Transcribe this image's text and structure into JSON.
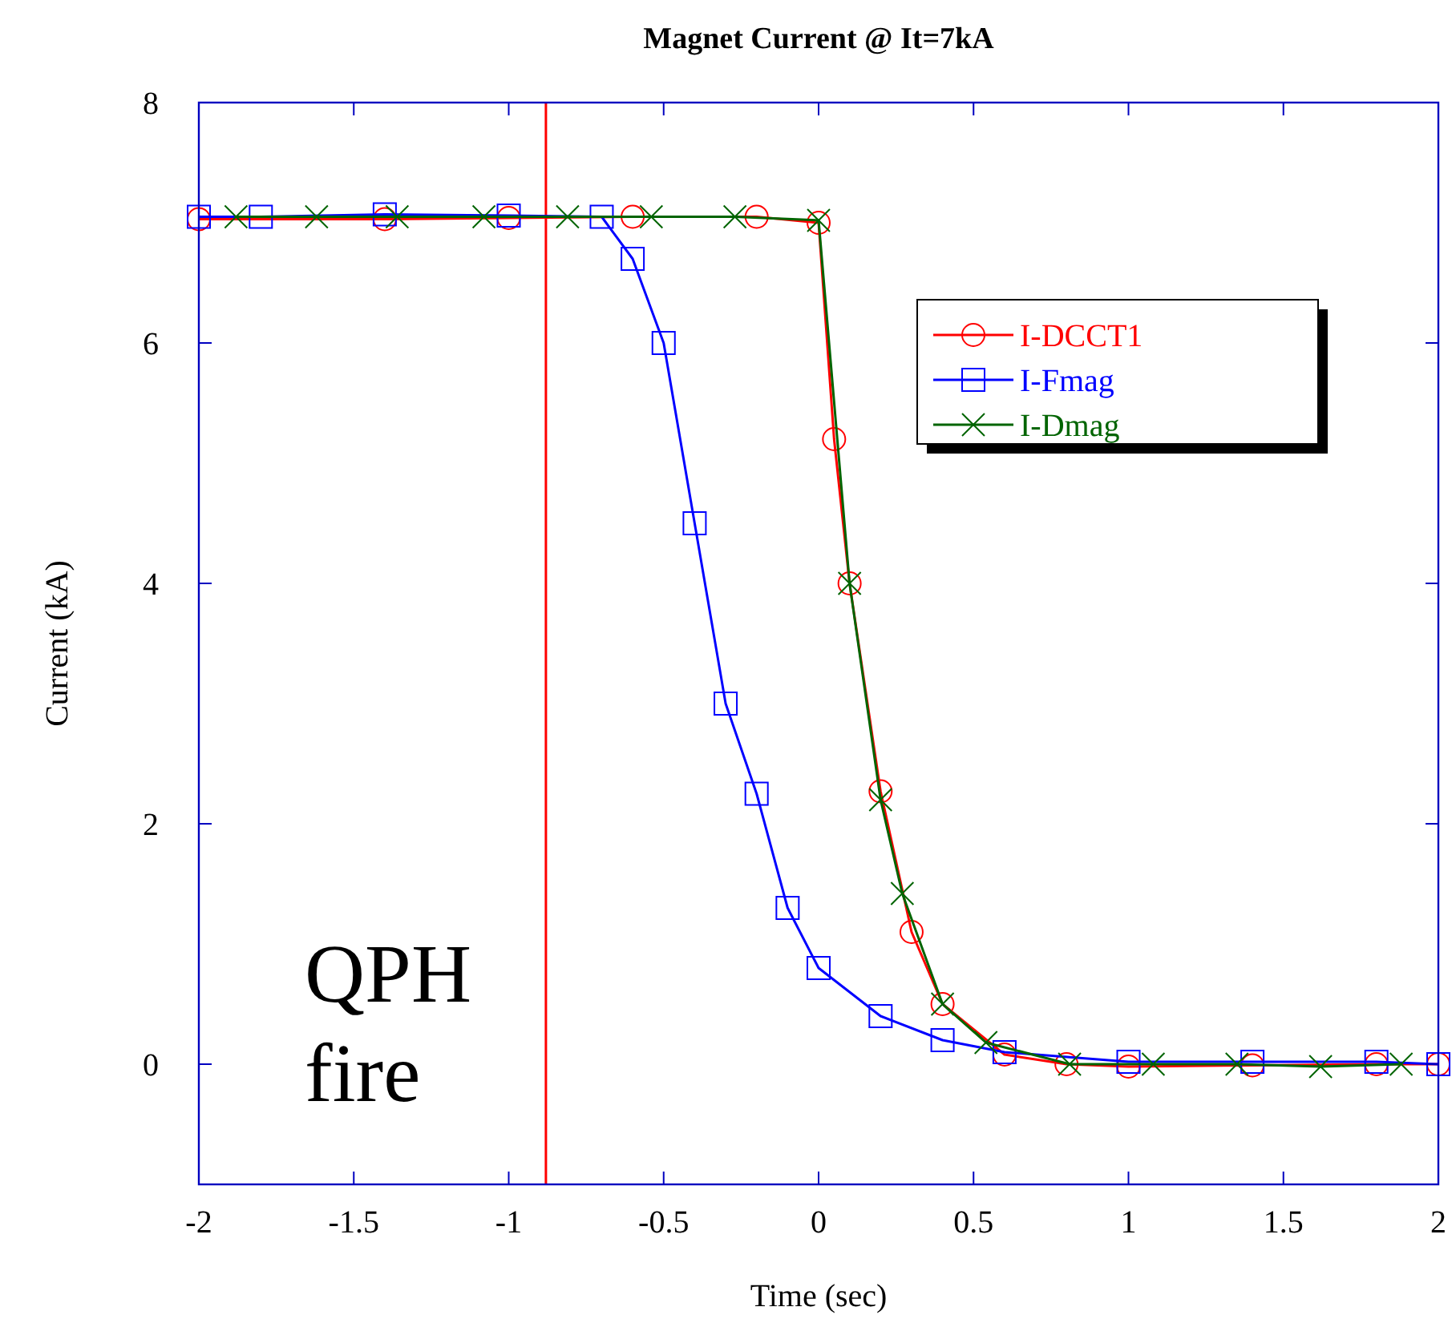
{
  "chart_data": {
    "type": "line",
    "title": "Magnet Current @ It=7kA",
    "xlabel": "Time (sec)",
    "ylabel": "Current (kA)",
    "xlim": [
      -2,
      2
    ],
    "ylim": [
      -1,
      8
    ],
    "xticks": [
      -2,
      -1.5,
      -1,
      -0.5,
      0,
      0.5,
      1,
      1.5,
      2
    ],
    "yticks": [
      0,
      2,
      4,
      6,
      8
    ],
    "grid": false,
    "legend": "top right",
    "line_style": "solid",
    "series": [
      {
        "name": "I-DCCT1",
        "color": "#ff0000",
        "marker": "circle",
        "x": [
          -2,
          -1.4,
          -1.0,
          -0.6,
          -0.2,
          0,
          0.05,
          0.1,
          0.2,
          0.3,
          0.4,
          0.6,
          0.8,
          1.0,
          1.4,
          1.8,
          2
        ],
        "values": [
          7.03,
          7.03,
          7.04,
          7.05,
          7.05,
          7.0,
          5.2,
          4.0,
          2.27,
          1.1,
          0.5,
          0.08,
          0.0,
          -0.02,
          -0.01,
          0.0,
          0.0
        ]
      },
      {
        "name": "I-Fmag",
        "color": "#0000ff",
        "marker": "square",
        "x": [
          -2,
          -1.8,
          -1.4,
          -1.0,
          -0.7,
          -0.6,
          -0.5,
          -0.4,
          -0.3,
          -0.2,
          -0.1,
          0,
          0.2,
          0.4,
          0.6,
          1.0,
          1.4,
          1.8,
          2
        ],
        "values": [
          7.05,
          7.05,
          7.07,
          7.06,
          7.05,
          6.7,
          6.0,
          4.5,
          3.0,
          2.25,
          1.3,
          0.8,
          0.4,
          0.2,
          0.1,
          0.02,
          0.02,
          0.02,
          0.0
        ]
      },
      {
        "name": "I-Dmag",
        "color": "#006400",
        "marker": "cross",
        "x": [
          -1.88,
          -1.62,
          -1.36,
          -1.08,
          -0.81,
          -0.54,
          -0.27,
          0,
          0.1,
          0.2,
          0.27,
          0.4,
          0.54,
          0.81,
          1.08,
          1.35,
          1.62,
          1.88
        ],
        "values": [
          7.05,
          7.05,
          7.05,
          7.05,
          7.05,
          7.05,
          7.05,
          7.02,
          4.0,
          2.2,
          1.42,
          0.5,
          0.18,
          0.0,
          0.0,
          0.0,
          -0.02,
          0.0
        ]
      }
    ],
    "ref_lines": [
      {
        "axis": "x",
        "value": -0.88,
        "label": "QPH fire",
        "color": "#ff0000"
      }
    ]
  }
}
